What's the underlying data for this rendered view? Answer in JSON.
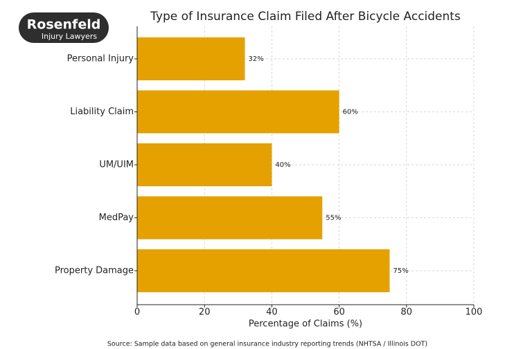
{
  "logo": {
    "name": "Rosenfeld",
    "tagline": "Injury Lawyers"
  },
  "chart_data": {
    "type": "bar",
    "orientation": "horizontal",
    "title": "Type of Insurance Claim Filed After Bicycle Accidents",
    "categories": [
      "Personal Injury",
      "Liability Claim",
      "UM/UIM",
      "MedPay",
      "Property Damage"
    ],
    "values": [
      32,
      60,
      40,
      55,
      75
    ],
    "value_labels": [
      "32%",
      "60%",
      "40%",
      "55%",
      "75%"
    ],
    "color": "#e5a100",
    "xlabel": "Percentage of Claims (%)",
    "xlim": [
      0,
      100
    ],
    "xticks": [
      0,
      20,
      40,
      60,
      80,
      100
    ],
    "grid": true
  },
  "source": "Source: Sample data based on general insurance industry reporting trends (NHTSA / Illinois DOT)"
}
